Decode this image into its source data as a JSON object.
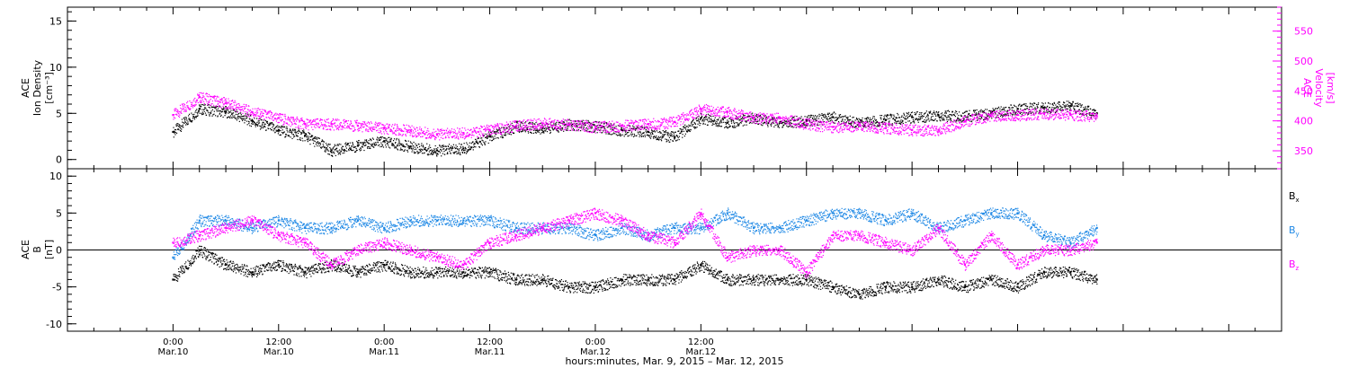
{
  "chart_data": [
    {
      "type": "scatter",
      "panel": "top",
      "ylabel_lines": [
        "ACE",
        "Ion Density",
        "[cm⁻³]"
      ],
      "ylim": [
        -1,
        16.5
      ],
      "yticks": [
        0,
        5,
        10,
        15
      ],
      "y2label_lines": [
        "ACE",
        "Velocity",
        "[km/s]"
      ],
      "y2lim": [
        320,
        590
      ],
      "y2ticks": [
        350,
        400,
        450,
        500,
        550
      ],
      "colors": {
        "density": "#000000",
        "velocity": "#ff00ff"
      },
      "series": [
        {
          "axis": "left",
          "color": "#000000",
          "x_hours": [
            0,
            3,
            6,
            9,
            12,
            15,
            18,
            21,
            24,
            27,
            30,
            33,
            36,
            39,
            42,
            45,
            48,
            51,
            54,
            57,
            60,
            63,
            66,
            69,
            72,
            75,
            78,
            81,
            84,
            87,
            90,
            93,
            96,
            99,
            102,
            105
          ],
          "values": [
            3.0,
            5.5,
            5.2,
            4.2,
            3.2,
            2.6,
            1.0,
            1.5,
            2.0,
            1.4,
            1.0,
            1.2,
            2.5,
            3.6,
            3.4,
            3.8,
            3.6,
            3.2,
            3.0,
            2.4,
            4.5,
            4.0,
            4.5,
            4.0,
            4.2,
            4.6,
            4.0,
            4.3,
            4.6,
            4.8,
            4.7,
            5.0,
            5.5,
            5.6,
            5.8,
            5.0
          ]
        },
        {
          "axis": "right",
          "color": "#ff00ff",
          "x_hours": [
            0,
            3,
            6,
            9,
            12,
            15,
            18,
            21,
            24,
            27,
            30,
            33,
            36,
            39,
            42,
            45,
            48,
            51,
            54,
            57,
            60,
            63,
            66,
            69,
            72,
            75,
            78,
            81,
            84,
            87,
            90,
            93,
            96,
            99,
            102,
            105
          ],
          "values": [
            410,
            440,
            430,
            415,
            405,
            395,
            395,
            392,
            388,
            384,
            378,
            380,
            385,
            392,
            396,
            394,
            390,
            392,
            395,
            398,
            420,
            415,
            405,
            405,
            395,
            390,
            392,
            388,
            385,
            385,
            400,
            408,
            410,
            412,
            410,
            408
          ]
        }
      ]
    },
    {
      "type": "scatter",
      "panel": "bottom",
      "ylabel_lines": [
        "ACE",
        "B",
        "[nT]"
      ],
      "ylim": [
        -11,
        11
      ],
      "yticks": [
        -10,
        -5,
        0,
        5,
        10
      ],
      "legend_placement": "right",
      "legend": [
        {
          "label": "B",
          "sub": "x",
          "color": "#000000"
        },
        {
          "label": "B",
          "sub": "y",
          "color": "#1e88e5"
        },
        {
          "label": "B",
          "sub": "z",
          "color": "#ff00ff"
        }
      ],
      "series": [
        {
          "sub": "x",
          "color": "#000000",
          "x_hours": [
            0,
            3,
            6,
            9,
            12,
            15,
            18,
            21,
            24,
            27,
            30,
            33,
            36,
            39,
            42,
            45,
            48,
            51,
            54,
            57,
            60,
            63,
            66,
            69,
            72,
            75,
            78,
            81,
            84,
            87,
            90,
            93,
            96,
            99,
            102,
            105
          ],
          "values": [
            -4,
            0,
            -2,
            -3,
            -2,
            -3,
            -2,
            -3,
            -2,
            -3,
            -3,
            -3,
            -3,
            -4,
            -4,
            -5,
            -5,
            -4,
            -4,
            -4,
            -2,
            -4,
            -4,
            -4,
            -4,
            -5,
            -6,
            -5,
            -5,
            -4,
            -5,
            -4,
            -5,
            -3,
            -3,
            -4
          ]
        },
        {
          "sub": "y",
          "color": "#1e88e5",
          "x_hours": [
            0,
            3,
            6,
            9,
            12,
            15,
            18,
            21,
            24,
            27,
            30,
            33,
            36,
            39,
            42,
            45,
            48,
            51,
            54,
            57,
            60,
            63,
            66,
            69,
            72,
            75,
            78,
            81,
            84,
            87,
            90,
            93,
            96,
            99,
            102,
            105
          ],
          "values": [
            -1,
            4,
            4,
            3,
            4,
            3,
            3,
            4,
            3,
            4,
            4,
            4,
            4,
            3,
            3,
            3,
            2,
            3,
            2,
            3,
            3,
            5,
            3,
            3,
            4,
            5,
            5,
            4,
            5,
            3,
            4,
            5,
            5,
            2,
            1,
            3
          ]
        },
        {
          "sub": "z",
          "color": "#ff00ff",
          "x_hours": [
            0,
            3,
            6,
            9,
            12,
            15,
            18,
            21,
            24,
            27,
            30,
            33,
            36,
            39,
            42,
            45,
            48,
            51,
            54,
            57,
            60,
            63,
            66,
            69,
            72,
            75,
            78,
            81,
            84,
            87,
            90,
            93,
            96,
            99,
            102,
            105
          ],
          "values": [
            1,
            2,
            3,
            4,
            2,
            1,
            -2,
            0,
            1,
            0,
            -1,
            -2,
            1,
            2,
            3,
            4,
            5,
            4,
            2,
            1,
            5,
            -1,
            0,
            0,
            -3,
            2,
            2,
            1,
            0,
            3,
            -2,
            2,
            -2,
            0,
            0,
            1
          ]
        }
      ]
    }
  ],
  "x_axis": {
    "title": "hours:minutes,  Mar.  9, 2015 – Mar. 12, 2015",
    "xlim_hours": [
      -12,
      126
    ],
    "ticks": [
      {
        "hours": 0,
        "time": "0:00",
        "date": "Mar.10"
      },
      {
        "hours": 12,
        "time": "12:00",
        "date": "Mar.10"
      },
      {
        "hours": 24,
        "time": "0:00",
        "date": "Mar.11"
      },
      {
        "hours": 36,
        "time": "12:00",
        "date": "Mar.11"
      },
      {
        "hours": 48,
        "time": "0:00",
        "date": "Mar.12"
      },
      {
        "hours": 60,
        "time": "12:00",
        "date": "Mar.12"
      }
    ]
  }
}
